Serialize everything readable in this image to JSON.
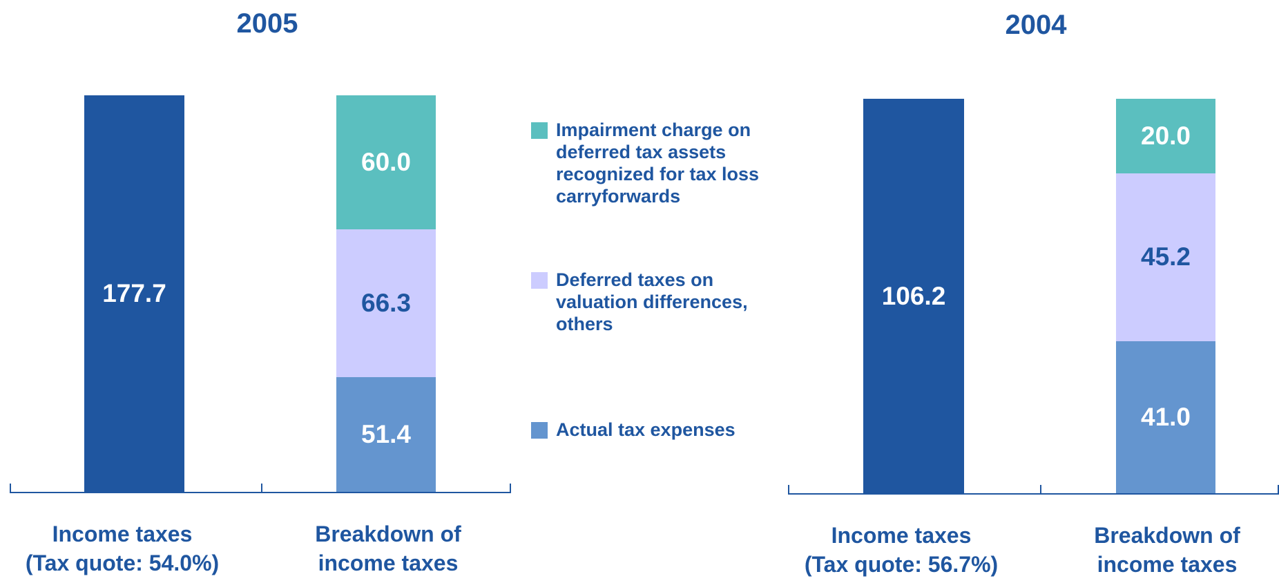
{
  "chart_data": [
    {
      "type": "stacked_bar",
      "title": "2005",
      "categories": [
        "Income taxes\n(Tax quote: 54.0%)",
        "Breakdown of\nincome taxes"
      ],
      "series": [
        {
          "color": "#1f56a0",
          "values": [
            177.7,
            null
          ],
          "value_labels": [
            "177.7",
            null
          ]
        },
        {
          "name": "Actual tax expenses",
          "color": "#6495cf",
          "values": [
            null,
            51.4
          ],
          "value_labels": [
            null,
            "51.4"
          ]
        },
        {
          "name": "Deferred taxes on\nvaluation differences,\nothers",
          "color": "#ccccff",
          "values": [
            null,
            66.3
          ],
          "value_labels": [
            null,
            "66.3"
          ]
        },
        {
          "name": "Impairment charge on\ndeferred tax assets\nrecognized for tax loss\ncarryforwards",
          "color": "#5bbfbf",
          "values": [
            null,
            60
          ],
          "value_labels": [
            null,
            "60.0"
          ]
        }
      ]
    },
    {
      "type": "stacked_bar",
      "title": "2004",
      "categories": [
        "Income taxes\n(Tax quote: 56.7%)",
        "Breakdown of\nincome taxes"
      ],
      "series": [
        {
          "color": "#1f56a0",
          "values": [
            106.2,
            null
          ],
          "value_labels": [
            "106.2",
            null
          ]
        },
        {
          "name": "Actual tax expenses",
          "color": "#6495cf",
          "values": [
            null,
            41
          ],
          "value_labels": [
            null,
            "41.0"
          ]
        },
        {
          "name": "Deferred taxes on\nvaluation differences,\nothers",
          "color": "#ccccff",
          "values": [
            null,
            45.2
          ],
          "value_labels": [
            null,
            "45.2"
          ]
        },
        {
          "name": "Impairment charge on\ndeferred tax assets\nrecognized for tax loss\ncarryforwards",
          "color": "#5bbfbf",
          "values": [
            null,
            20
          ],
          "value_labels": [
            null,
            "20.0"
          ]
        }
      ]
    }
  ]
}
